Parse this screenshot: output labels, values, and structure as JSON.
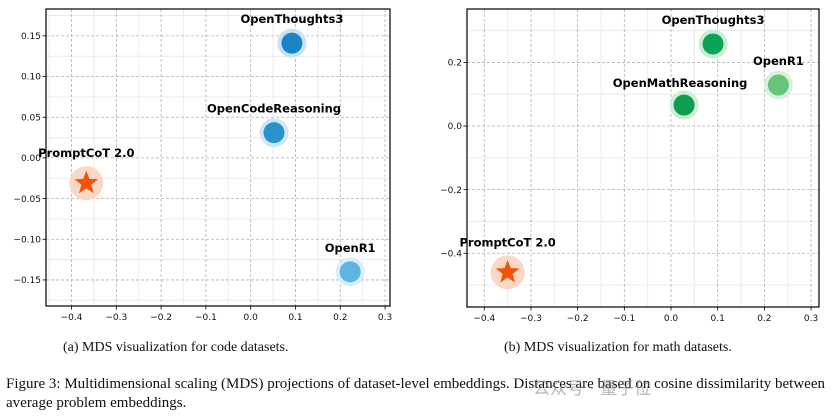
{
  "chart_data": [
    {
      "type": "scatter",
      "title": "",
      "caption": "(a) MDS visualization for code datasets.",
      "xlabel": "",
      "ylabel": "",
      "xlim": [
        -0.457,
        0.311
      ],
      "ylim": [
        -0.182,
        0.183
      ],
      "xticks": [
        -0.4,
        -0.3,
        -0.2,
        -0.1,
        0.0,
        0.1,
        0.2,
        0.3
      ],
      "xtick_labels": [
        "−0.4",
        "−0.3",
        "−0.2",
        "−0.1",
        "0.0",
        "0.1",
        "0.2",
        "0.3"
      ],
      "yticks": [
        0.15,
        0.1,
        0.05,
        0.0,
        -0.05,
        -0.1,
        -0.15
      ],
      "ytick_labels": [
        "0.15",
        "0.10",
        "0.05",
        "0.00",
        "−0.05",
        "−0.10",
        "−0.15"
      ],
      "grid": true,
      "points": [
        {
          "name": "OpenThoughts3",
          "x": 0.092,
          "y": 0.141,
          "marker": "circle",
          "color": "#1a85c6",
          "halo": "#c6e2f3",
          "label_pos": "above"
        },
        {
          "name": "OpenCodeReasoning",
          "x": 0.052,
          "y": 0.031,
          "marker": "circle",
          "color": "#2a93cc",
          "halo": "#cfe6f4",
          "label_pos": "above"
        },
        {
          "name": "OpenR1",
          "x": 0.222,
          "y": -0.14,
          "marker": "circle",
          "color": "#5fb3df",
          "halo": "#d9edf8",
          "label_pos": "above"
        },
        {
          "name": "PromptCoT 2.0",
          "x": -0.367,
          "y": -0.031,
          "marker": "star",
          "color": "#f4520c",
          "halo": "#fbd7c6",
          "label_pos": "above"
        }
      ]
    },
    {
      "type": "scatter",
      "title": "",
      "caption": "(b) MDS visualization for math datasets.",
      "xlabel": "",
      "ylabel": "",
      "xlim": [
        -0.437,
        0.317
      ],
      "ylim": [
        -0.569,
        0.368
      ],
      "xticks": [
        -0.4,
        -0.3,
        -0.2,
        -0.1,
        0.0,
        0.1,
        0.2,
        0.3
      ],
      "xtick_labels": [
        "−0.4",
        "−0.3",
        "−0.2",
        "−0.1",
        "0.0",
        "0.1",
        "0.2",
        "0.3"
      ],
      "yticks": [
        0.2,
        0.0,
        -0.2,
        -0.4
      ],
      "ytick_labels": [
        "0.2",
        "0.0",
        "−0.2",
        "−0.4"
      ],
      "grid": true,
      "points": [
        {
          "name": "OpenThoughts3",
          "x": 0.09,
          "y": 0.258,
          "marker": "circle",
          "color": "#0aa456",
          "halo": "#c9ecd6",
          "label_pos": "above"
        },
        {
          "name": "OpenMathReasoning",
          "x": 0.028,
          "y": 0.066,
          "marker": "circle",
          "color": "#0d9e52",
          "halo": "#cbeed8",
          "label_pos": "above-left"
        },
        {
          "name": "OpenR1",
          "x": 0.23,
          "y": 0.129,
          "marker": "circle",
          "color": "#67c47d",
          "halo": "#d8f1de",
          "label_pos": "above"
        },
        {
          "name": "PromptCoT 2.0",
          "x": -0.35,
          "y": -0.46,
          "marker": "star",
          "color": "#f4520c",
          "halo": "#fbd7c6",
          "label_pos": "above"
        }
      ]
    }
  ],
  "figure": {
    "caption": "Figure 3: Multidimensional scaling (MDS) projections of dataset-level embeddings. Distances are based on cosine dissimilarity between average problem embeddings.",
    "watermark": "公众号 · 量子位"
  }
}
